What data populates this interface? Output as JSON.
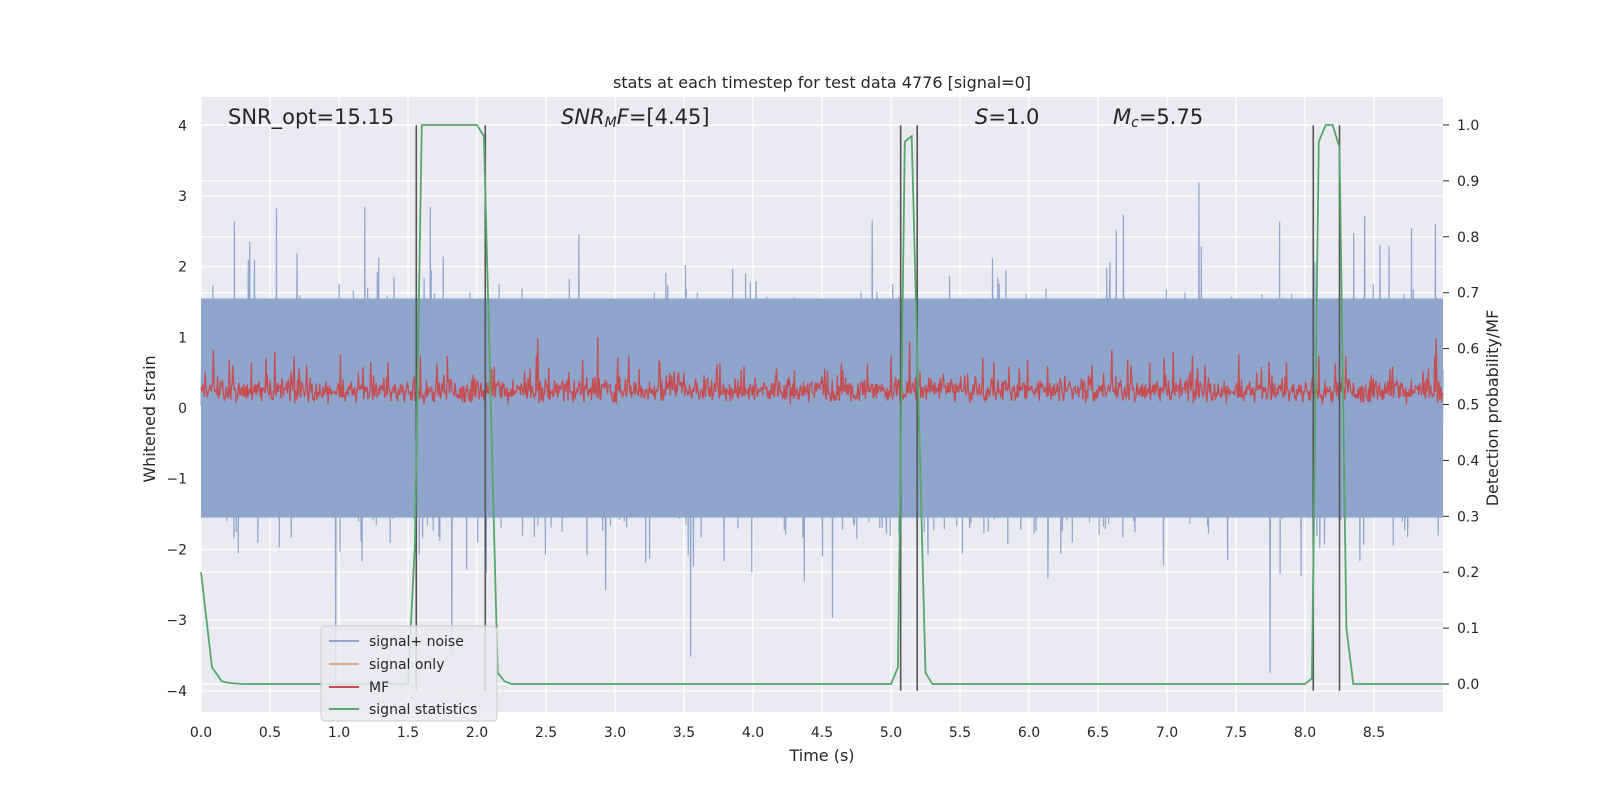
{
  "chart_data": {
    "type": "line",
    "title": "stats at each timestep for test data 4776 [signal=0]",
    "xlabel": "Time (s)",
    "ylabel_left": "Whitened strain",
    "ylabel_right": "Detection probability/MF",
    "xlim": [
      0,
      9
    ],
    "ylim_left": [
      -4.3,
      4.4
    ],
    "ylim_right": [
      -0.05,
      1.05
    ],
    "xticks": [
      "0.0",
      "0.5",
      "1.0",
      "1.5",
      "2.0",
      "2.5",
      "3.0",
      "3.5",
      "4.0",
      "4.5",
      "5.0",
      "5.5",
      "6.0",
      "6.5",
      "7.0",
      "7.5",
      "8.0",
      "8.5"
    ],
    "xtick_values": [
      0,
      0.5,
      1.0,
      1.5,
      2.0,
      2.5,
      3.0,
      3.5,
      4.0,
      4.5,
      5.0,
      5.5,
      6.0,
      6.5,
      7.0,
      7.5,
      8.0,
      8.5
    ],
    "yticks_left": [
      "4",
      "3",
      "2",
      "1",
      "0",
      "−1",
      "−2",
      "−3",
      "−4"
    ],
    "ytick_values_left": [
      4,
      3,
      2,
      1,
      0,
      -1,
      -2,
      -3,
      -4
    ],
    "yticks_right": [
      "1.0",
      "0.9",
      "0.8",
      "0.7",
      "0.6",
      "0.5",
      "0.4",
      "0.3",
      "0.2",
      "0.1",
      "0.0"
    ],
    "ytick_values_right": [
      1.0,
      0.9,
      0.8,
      0.7,
      0.6,
      0.5,
      0.4,
      0.3,
      0.2,
      0.1,
      0.0
    ],
    "annotations": {
      "snr_opt": "SNR_opt=15.15",
      "snr_mf_label": "SNR",
      "snr_mf_sub": "M",
      "snr_mf_rest": "F=[4.45]",
      "s_label": "S",
      "s_value": "=1.0",
      "mc_label": "M",
      "mc_sub": "c",
      "mc_value": "=5.75"
    },
    "series": [
      {
        "name": "signal+ noise",
        "axis": "left",
        "color": "#8fa5cc",
        "description": "noise fill, ~[-1.7, 1.7] dense with spikes to ±4"
      },
      {
        "name": "signal only",
        "axis": "left",
        "color": "#eba58c",
        "values": []
      },
      {
        "name": "MF",
        "axis": "right",
        "color": "#c44e52",
        "range": [
          0.5,
          0.63
        ]
      },
      {
        "name": "signal statistics",
        "axis": "right",
        "color": "#55a868",
        "x": [
          0.0,
          0.08,
          0.15,
          0.2,
          0.3,
          1.5,
          1.55,
          1.6,
          1.65,
          1.95,
          2.0,
          2.05,
          2.1,
          2.15,
          2.2,
          2.25,
          2.3,
          5.0,
          5.05,
          5.1,
          5.15,
          5.2,
          5.25,
          5.3,
          5.35,
          8.0,
          8.05,
          8.1,
          8.15,
          8.2,
          8.25,
          8.3,
          8.35,
          8.4,
          9.0
        ],
        "values": [
          0.2,
          0.03,
          0.005,
          0.002,
          0.0,
          0.0,
          0.25,
          1.0,
          1.0,
          1.0,
          1.0,
          0.98,
          0.5,
          0.02,
          0.005,
          0.0,
          0.0,
          0.0,
          0.03,
          0.97,
          0.98,
          0.5,
          0.02,
          0.0,
          0.0,
          0.0,
          0.01,
          0.97,
          1.0,
          1.0,
          0.96,
          0.1,
          0.0,
          0.0,
          0.0
        ]
      }
    ],
    "vlines": [
      1.56,
      2.06,
      5.07,
      5.19,
      8.06,
      8.25
    ],
    "legend": {
      "location": "lower-left",
      "entries": [
        "signal+ noise",
        "signal only",
        "MF",
        "signal statistics"
      ]
    },
    "colors": {
      "background": "#eaeaf2",
      "grid": "#ffffff",
      "noise": "#8fa5cc",
      "signal_only": "#eba58c",
      "mf": "#c44e52",
      "stats": "#55a868",
      "vline": "#555555"
    }
  }
}
